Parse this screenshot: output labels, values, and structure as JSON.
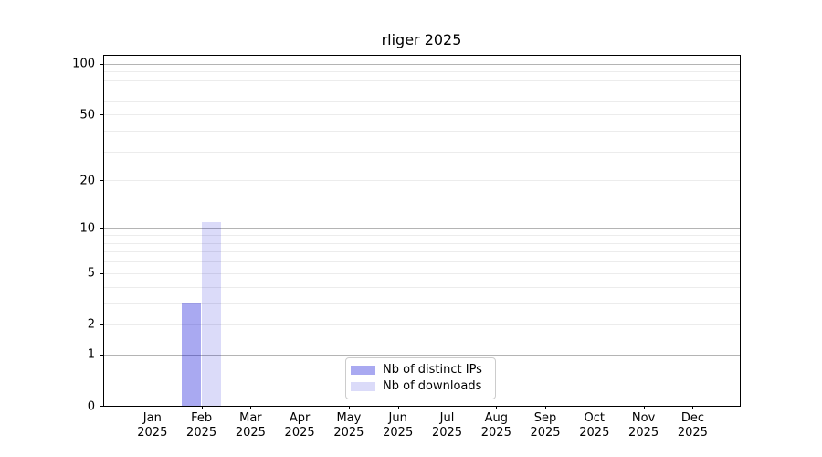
{
  "chart_data": {
    "type": "bar",
    "title": "rliger 2025",
    "year_label": "2025",
    "categories": [
      "Jan",
      "Feb",
      "Mar",
      "Apr",
      "May",
      "Jun",
      "Jul",
      "Aug",
      "Sep",
      "Oct",
      "Nov",
      "Dec"
    ],
    "series": [
      {
        "key": "distinct-ips",
        "name": "Nb of distinct IPs",
        "color": "rgba(10,10,215,0.35)",
        "values": [
          0,
          3,
          0,
          0,
          0,
          0,
          0,
          0,
          0,
          0,
          0,
          0
        ]
      },
      {
        "key": "downloads",
        "name": "Nb of downloads",
        "color": "rgba(10,10,215,0.145)",
        "values": [
          0,
          11,
          0,
          0,
          0,
          0,
          0,
          0,
          0,
          0,
          0,
          0
        ]
      }
    ],
    "y_axis": {
      "scale": "log1p",
      "tick_values": [
        0,
        1,
        2,
        5,
        10,
        20,
        50,
        100
      ],
      "major_gridlines": [
        1,
        10,
        100
      ],
      "minor_gridlines": [
        2,
        3,
        4,
        5,
        6,
        7,
        8,
        9,
        20,
        30,
        40,
        50,
        60,
        70,
        80,
        90
      ],
      "ylim": [
        0,
        113
      ]
    },
    "legend": {
      "position": "lower center",
      "labels": [
        "Nb of distinct IPs",
        "Nb of downloads"
      ]
    },
    "grid": true
  },
  "colors": {
    "background": "#ffffff",
    "axis": "#000000",
    "major_gridline": "#b4b4b4",
    "minor_gridline": "#ececec",
    "bar_distinct_ips_effective": "#a9a9f1",
    "bar_downloads_effective": "#dcdcf7",
    "legend_border": "#cccccc"
  }
}
